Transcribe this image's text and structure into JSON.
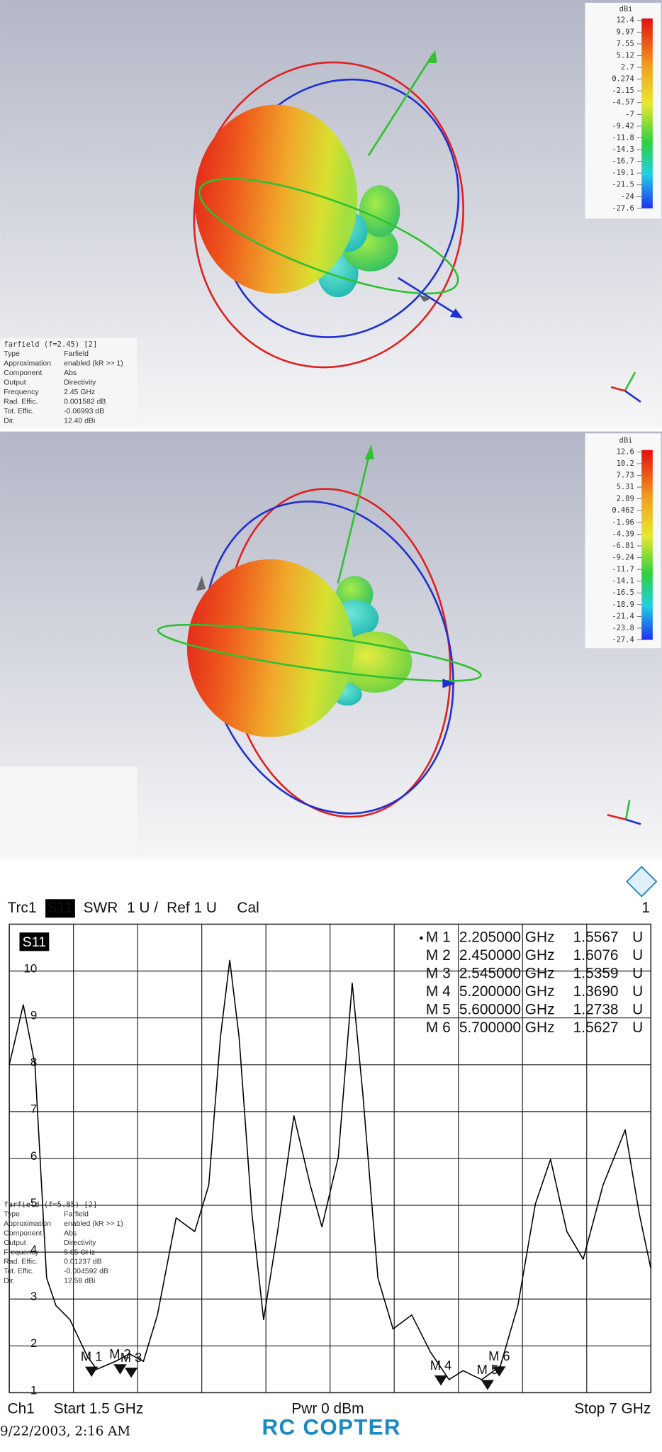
{
  "farfield_panels": [
    {
      "colorbar": {
        "unit": "dBi",
        "labels": [
          "12.4",
          "9.97",
          "7.55",
          "5.12",
          "2.7",
          "0.274",
          "-2.15",
          "-4.57",
          "-7",
          "-9.42",
          "-11.8",
          "-14.3",
          "-16.7",
          "-19.1",
          "-21.5",
          "-24",
          "-27.6"
        ]
      },
      "info": {
        "title": "farfield (f=2.45) [2]",
        "rows": [
          [
            "Type",
            "Farfield"
          ],
          [
            "Approximation",
            "enabled (kR >> 1)"
          ],
          [
            "Component",
            "Abs"
          ],
          [
            "Output",
            "Directivity"
          ],
          [
            "Frequency",
            "2.45 GHz"
          ],
          [
            "Rad. Effic.",
            "0.001582 dB"
          ],
          [
            "Tot. Effic.",
            "-0.06993 dB"
          ],
          [
            "Dir.",
            "12.40 dBi"
          ]
        ]
      }
    },
    {
      "colorbar": {
        "unit": "dBi",
        "labels": [
          "12.6",
          "10.2",
          "7.73",
          "5.31",
          "2.89",
          "0.462",
          "-1.96",
          "-4.39",
          "-6.81",
          "-9.24",
          "-11.7",
          "-14.1",
          "-16.5",
          "-18.9",
          "-21.4",
          "-23.8",
          "-27.4"
        ]
      },
      "info": {
        "title": "farfield (f=5.85) [2]",
        "rows": [
          [
            "Type",
            "Farfield"
          ],
          [
            "Approximation",
            "enabled (kR >> 1)"
          ],
          [
            "Component",
            "Abs"
          ],
          [
            "Output",
            "Directivity"
          ],
          [
            "Frequency",
            "5.85 GHz"
          ],
          [
            "Rad. Effic.",
            "0.01237 dB"
          ],
          [
            "Tot. Effic.",
            "-0.004592 dB"
          ],
          [
            "Dir.",
            "12.58 dBi"
          ]
        ]
      }
    }
  ],
  "chart_data": {
    "type": "line",
    "header": {
      "trace": "Trc1",
      "param": "S11",
      "format": "SWR",
      "scale": "1 U /",
      "ref": "Ref 1 U",
      "cal": "Cal",
      "channel_index": "1"
    },
    "x": [
      1.5,
      1.62,
      1.72,
      1.82,
      1.9,
      2.02,
      2.17,
      2.25,
      2.41,
      2.53,
      2.65,
      2.77,
      2.93,
      3.09,
      3.21,
      3.31,
      3.39,
      3.47,
      3.58,
      3.68,
      3.8,
      3.94,
      4.08,
      4.18,
      4.32,
      4.44,
      4.53,
      4.66,
      4.79,
      4.95,
      5.11,
      5.27,
      5.39,
      5.55,
      5.71,
      5.86,
      6.01,
      6.14,
      6.28,
      6.42,
      6.59,
      6.78,
      6.9,
      7.0
    ],
    "series": [
      {
        "name": "S11",
        "color": "#000000",
        "values": [
          8.0,
          9.28,
          8.0,
          3.45,
          2.86,
          2.56,
          1.77,
          1.5,
          1.67,
          1.83,
          1.67,
          2.66,
          4.73,
          4.44,
          5.43,
          8.59,
          10.23,
          8.59,
          4.83,
          2.56,
          4.44,
          6.91,
          5.43,
          4.54,
          6.02,
          9.74,
          7.4,
          3.45,
          2.36,
          2.66,
          1.87,
          1.28,
          1.47,
          1.28,
          1.57,
          2.86,
          5.03,
          5.98,
          4.44,
          3.85,
          5.43,
          6.61,
          4.83,
          3.65
        ]
      }
    ],
    "xlim": [
      1.5,
      7
    ],
    "xticks": [
      1.5,
      2.05,
      2.6,
      3.15,
      3.7,
      4.25,
      4.8,
      5.35,
      5.9,
      6.45,
      7
    ],
    "ylim": [
      1,
      11
    ],
    "yticks": [
      1,
      2,
      3,
      4,
      5,
      6,
      7,
      8,
      9,
      10
    ],
    "grid": true,
    "markers": [
      {
        "name": "M 1",
        "x": 2.205,
        "x_label": "2.205000 GHz",
        "value": 1.5567,
        "value_label": "1.5567",
        "unit": "U"
      },
      {
        "name": "M 2",
        "x": 2.45,
        "x_label": "2.450000 GHz",
        "value": 1.6076,
        "value_label": "1.6076",
        "unit": "U"
      },
      {
        "name": "M 3",
        "x": 2.545,
        "x_label": "2.545000 GHz",
        "value": 1.5359,
        "value_label": "1.5359",
        "unit": "U"
      },
      {
        "name": "M 4",
        "x": 5.2,
        "x_label": "5.200000 GHz",
        "value": 1.369,
        "value_label": "1.3690",
        "unit": "U"
      },
      {
        "name": "M 5",
        "x": 5.6,
        "x_label": "5.600000 GHz",
        "value": 1.2738,
        "value_label": "1.2738",
        "unit": "U"
      },
      {
        "name": "M 6",
        "x": 5.7,
        "x_label": "5.700000 GHz",
        "value": 1.5627,
        "value_label": "1.5627",
        "unit": "U"
      }
    ],
    "footer": {
      "channel": "Ch1",
      "start": "Start 1.5 GHz",
      "power": "Pwr 0 dBm",
      "stop": "Stop 7 GHz"
    },
    "timestamp": "9/22/2003, 2:16 AM",
    "watermark": "RC COPTER"
  }
}
